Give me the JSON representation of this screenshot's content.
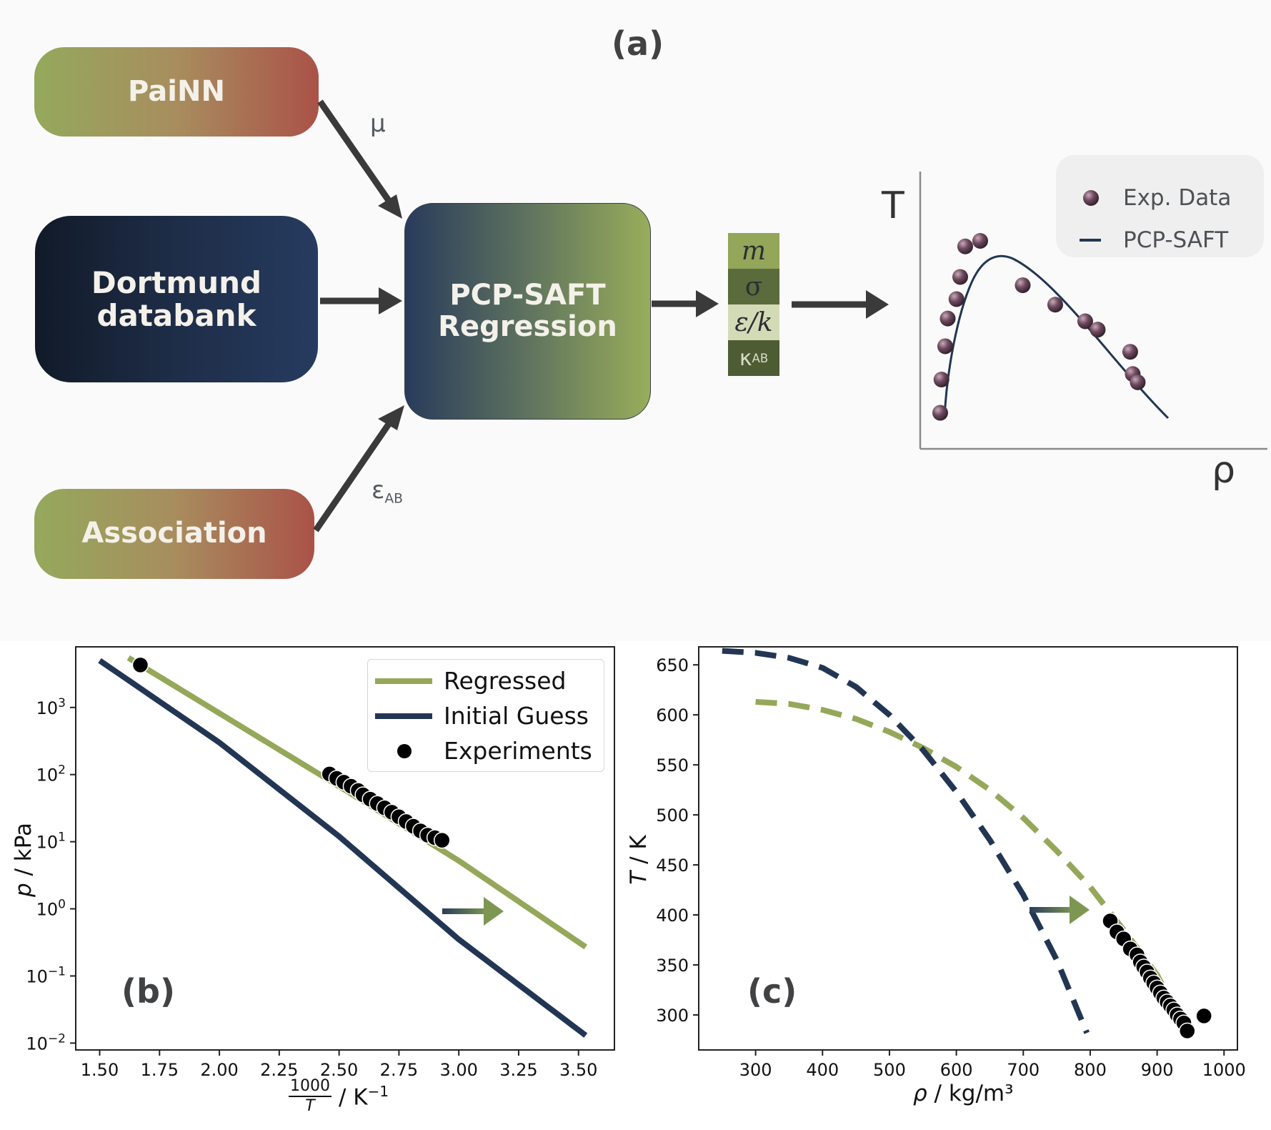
{
  "panel_a": {
    "tag": "(a)",
    "boxes": {
      "painn": "PaiNN",
      "dortmund_line1": "Dortmund",
      "dortmund_line2": "databank",
      "association": "Association",
      "pcp_line1": "PCP-SAFT",
      "pcp_line2": "Regression"
    },
    "arrow_labels": {
      "mu": "μ",
      "eps": "ε",
      "eps_sub": "AB"
    },
    "params": {
      "m": "m",
      "sigma": "σ",
      "eps_k": "ε/k",
      "kappa": "κ",
      "kappa_sub": "AB"
    },
    "schematic": {
      "y_label": "T",
      "x_label": "ρ",
      "legend": {
        "exp": "Exp. Data",
        "model": "PCP-SAFT"
      }
    }
  },
  "panel_b": {
    "tag": "(b)",
    "x_ticks": [
      "1.50",
      "1.75",
      "2.00",
      "2.25",
      "2.50",
      "2.75",
      "3.00",
      "3.25",
      "3.50"
    ],
    "y_ticks": [
      {
        "base": "10",
        "exp": "3"
      },
      {
        "base": "10",
        "exp": "2"
      },
      {
        "base": "10",
        "exp": "1"
      },
      {
        "base": "10",
        "exp": "0"
      },
      {
        "base": "10",
        "exp": "−1"
      },
      {
        "base": "10",
        "exp": "−2"
      }
    ],
    "x_label_frac_num": "1000",
    "x_label_frac_den": "T",
    "x_label_unit": "/ K",
    "x_label_unit_exp": "−1",
    "y_label_var": "p",
    "y_label_unit": " / kPa"
  },
  "panel_c": {
    "tag": "(c)",
    "x_ticks": [
      "300",
      "400",
      "500",
      "600",
      "700",
      "800",
      "900",
      "1000"
    ],
    "y_ticks": [
      "650",
      "600",
      "550",
      "500",
      "450",
      "400",
      "350",
      "300"
    ],
    "x_label_var": "ρ",
    "x_label_unit": " / kg/m³",
    "y_label_var": "T",
    "y_label_unit": " / K"
  },
  "legend": {
    "regressed": "Regressed",
    "initial": "Initial Guess",
    "experiments": "Experiments"
  },
  "colors": {
    "green": "#95a85a",
    "navy": "#223654",
    "arrow": "#3a3a3a"
  },
  "chart_data": [
    {
      "type": "line",
      "panel": "b",
      "xlabel": "1000/T / K^-1",
      "ylabel": "p / kPa",
      "xlim": [
        1.4,
        3.65
      ],
      "ylim": [
        0.0079,
        8000
      ],
      "y_scale": "log",
      "legend_position": "top-right",
      "series": [
        {
          "name": "Regressed",
          "style": "solid",
          "x": [
            1.62,
            2.0,
            2.5,
            3.0,
            3.53
          ],
          "y": [
            5500,
            820,
            67,
            5.2,
            0.27
          ]
        },
        {
          "name": "Initial Guess",
          "style": "solid",
          "x": [
            1.5,
            2.0,
            2.5,
            3.0,
            3.53
          ],
          "y": [
            5000,
            300,
            12,
            0.35,
            0.013
          ]
        },
        {
          "name": "Experiments",
          "style": "points",
          "x": [
            1.67,
            2.46,
            2.49,
            2.52,
            2.55,
            2.58,
            2.6,
            2.63,
            2.66,
            2.69,
            2.72,
            2.75,
            2.78,
            2.81,
            2.84,
            2.87,
            2.9,
            2.93
          ],
          "y": [
            4300,
            102,
            88,
            77,
            67,
            58,
            50,
            43,
            37,
            32,
            27.5,
            23.5,
            20,
            17,
            14.5,
            12.5,
            11.5,
            10.5
          ]
        }
      ]
    },
    {
      "type": "line",
      "panel": "c",
      "xlabel": "ρ / kg/m³",
      "ylabel": "T / K",
      "xlim": [
        215,
        1020
      ],
      "ylim": [
        265,
        668
      ],
      "series": [
        {
          "name": "Regressed",
          "style": "dashed",
          "x": [
            300,
            350,
            400,
            450,
            500,
            550,
            600,
            650,
            700,
            750,
            800,
            850,
            900,
            935
          ],
          "y": [
            613,
            611,
            605,
            596,
            583,
            567,
            548,
            525,
            497,
            464,
            428,
            385,
            340,
            295
          ]
        },
        {
          "name": "Initial Guess",
          "style": "dashed",
          "x": [
            250,
            300,
            350,
            400,
            450,
            500,
            550,
            600,
            650,
            700,
            750,
            795
          ],
          "y": [
            664,
            662,
            657,
            647,
            628,
            600,
            565,
            523,
            475,
            420,
            355,
            282
          ]
        },
        {
          "name": "Experiments",
          "style": "points",
          "x": [
            830,
            840,
            850,
            860,
            870,
            875,
            880,
            885,
            890,
            895,
            900,
            905,
            910,
            915,
            920,
            925,
            930,
            935,
            940,
            945,
            970
          ],
          "y": [
            394,
            383,
            376,
            366,
            360,
            353,
            348,
            343,
            337,
            332,
            327,
            322,
            317,
            313,
            309,
            305,
            300,
            296,
            292,
            284,
            299
          ]
        }
      ]
    },
    {
      "type": "scatter",
      "panel": "a-schematic",
      "xlabel": "ρ",
      "ylabel": "T",
      "series": [
        {
          "name": "Exp. Data",
          "style": "points",
          "x": [
            0.08,
            0.085,
            0.1,
            0.11,
            0.145,
            0.16,
            0.18,
            0.24,
            0.41,
            0.54,
            0.66,
            0.71,
            0.84,
            0.85,
            0.87
          ],
          "y": [
            0.13,
            0.25,
            0.37,
            0.47,
            0.54,
            0.62,
            0.73,
            0.75,
            0.59,
            0.52,
            0.46,
            0.43,
            0.35,
            0.27,
            0.24
          ]
        },
        {
          "name": "PCP-SAFT",
          "style": "solid"
        }
      ]
    }
  ]
}
